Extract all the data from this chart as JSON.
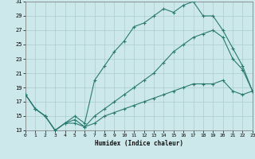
{
  "xlabel": "Humidex (Indice chaleur)",
  "background_color": "#cce8ea",
  "grid_color": "#aacccc",
  "line_color": "#2a7a70",
  "x_min": 0,
  "x_max": 23,
  "y_min": 13,
  "y_max": 31,
  "yticks": [
    13,
    15,
    17,
    19,
    21,
    23,
    25,
    27,
    29,
    31
  ],
  "xticks": [
    0,
    1,
    2,
    3,
    4,
    5,
    6,
    7,
    8,
    9,
    10,
    11,
    12,
    13,
    14,
    15,
    16,
    17,
    18,
    19,
    20,
    21,
    22,
    23
  ],
  "line_upper_x": [
    0,
    1,
    2,
    3,
    4,
    5,
    6,
    7,
    8,
    9,
    10,
    11,
    12,
    13,
    14,
    15,
    16,
    17,
    18,
    19,
    20,
    21,
    22,
    23
  ],
  "line_upper_y": [
    18,
    16,
    15,
    13,
    14,
    15,
    14,
    20,
    22,
    24,
    25.5,
    27.5,
    28,
    29,
    30,
    29.5,
    30.5,
    31,
    29,
    29,
    27,
    24.5,
    22,
    18.5
  ],
  "line_mid_x": [
    0,
    1,
    2,
    3,
    4,
    5,
    6,
    7,
    8,
    9,
    10,
    11,
    12,
    13,
    14,
    15,
    16,
    17,
    18,
    19,
    20,
    21,
    22,
    23
  ],
  "line_mid_y": [
    18,
    16,
    15,
    13,
    14,
    14.5,
    13.5,
    15,
    16,
    17,
    18,
    19,
    20,
    21,
    22.5,
    24,
    25,
    26,
    26.5,
    27,
    26,
    23,
    21.5,
    18.5
  ],
  "line_lower_x": [
    0,
    1,
    2,
    3,
    4,
    5,
    6,
    7,
    8,
    9,
    10,
    11,
    12,
    13,
    14,
    15,
    16,
    17,
    18,
    19,
    20,
    21,
    22,
    23
  ],
  "line_lower_y": [
    18,
    16,
    15,
    13,
    14,
    14,
    13.5,
    14,
    15,
    15.5,
    16,
    16.5,
    17,
    17.5,
    18,
    18.5,
    19,
    19.5,
    19.5,
    19.5,
    20,
    18.5,
    18,
    18.5
  ]
}
